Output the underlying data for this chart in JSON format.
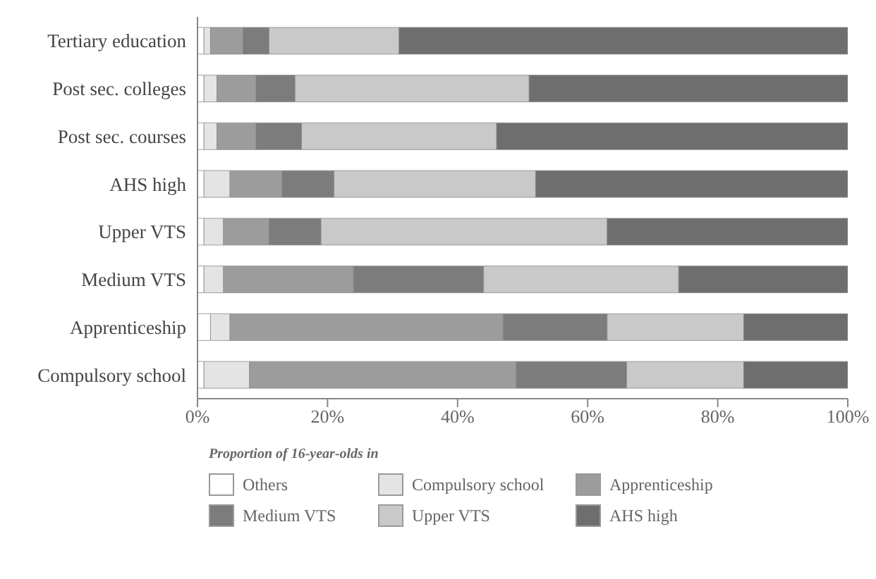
{
  "chart_data": {
    "type": "bar",
    "orientation": "horizontal",
    "stacked": true,
    "categories": [
      "Tertiary education",
      "Post sec. colleges",
      "Post sec. courses",
      "AHS high",
      "Upper VTS",
      "Medium VTS",
      "Apprenticeship",
      "Compulsory school"
    ],
    "series": [
      {
        "name": "Others",
        "color": "#ffffff",
        "values": [
          1,
          1,
          1,
          1,
          1,
          1,
          2,
          1
        ]
      },
      {
        "name": "Compulsory school",
        "color": "#e4e4e4",
        "values": [
          1,
          2,
          2,
          4,
          3,
          3,
          3,
          7
        ]
      },
      {
        "name": "Apprenticeship",
        "color": "#9c9c9c",
        "values": [
          5,
          6,
          6,
          8,
          7,
          20,
          42,
          41
        ]
      },
      {
        "name": "Medium VTS",
        "color": "#7c7c7c",
        "values": [
          4,
          6,
          7,
          8,
          8,
          20,
          16,
          17
        ]
      },
      {
        "name": "Upper VTS",
        "color": "#c9c9c9",
        "values": [
          20,
          36,
          30,
          31,
          44,
          30,
          21,
          18
        ]
      },
      {
        "name": "AHS high",
        "color": "#6e6e6e",
        "values": [
          69,
          49,
          54,
          48,
          37,
          26,
          16,
          16
        ]
      }
    ],
    "xlim": [
      0,
      100
    ],
    "xticks": [
      {
        "value": 0,
        "label": "0%"
      },
      {
        "value": 20,
        "label": "20%"
      },
      {
        "value": 40,
        "label": "40%"
      },
      {
        "value": 60,
        "label": "60%"
      },
      {
        "value": 80,
        "label": "80%"
      },
      {
        "value": 100,
        "label": "100%"
      }
    ],
    "legend_title": "Proportion of 16-year-olds in",
    "legend": "bottom",
    "grid": false
  }
}
